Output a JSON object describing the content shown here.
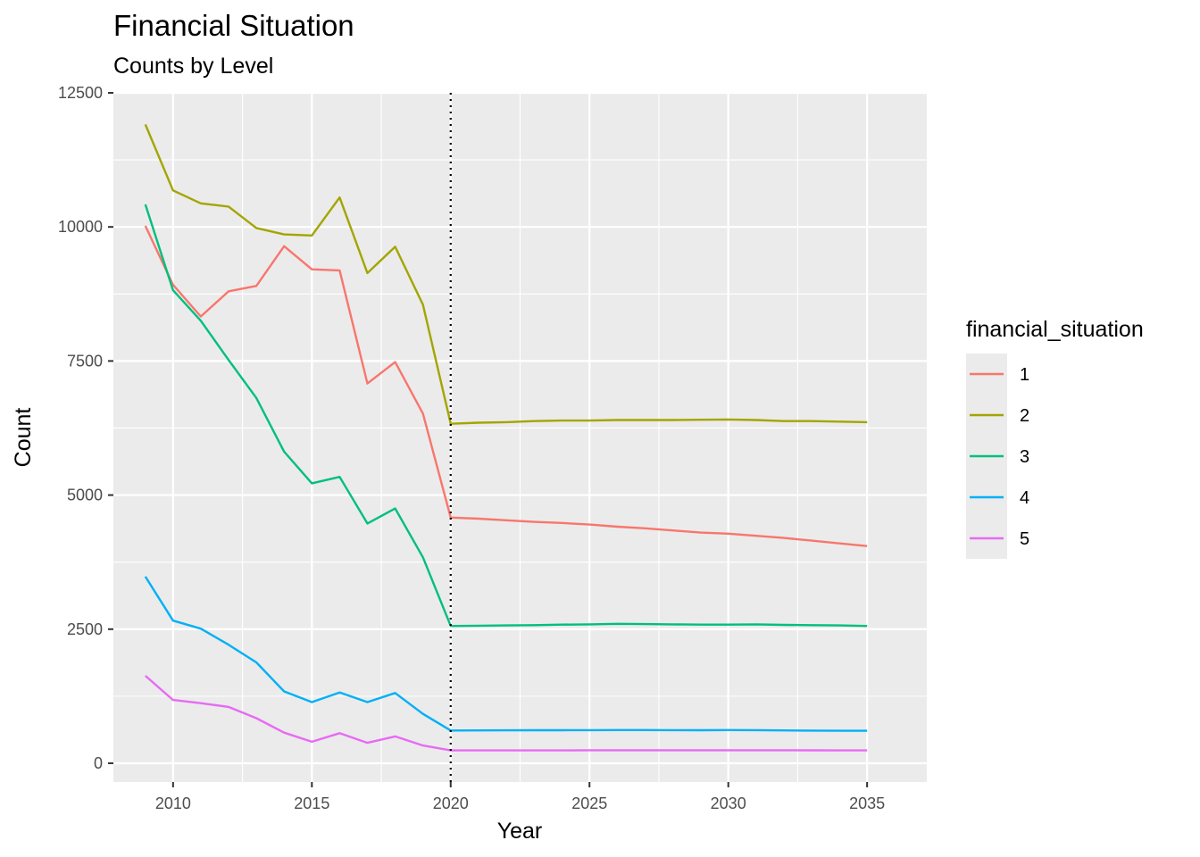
{
  "chart_data": {
    "type": "line",
    "title": "Financial Situation",
    "subtitle": "Counts by Level",
    "xlabel": "Year",
    "ylabel": "Count",
    "xlim": [
      2007.85,
      2037.15
    ],
    "ylim": [
      -350,
      12500
    ],
    "x_ticks": [
      2010,
      2015,
      2020,
      2025,
      2030,
      2035
    ],
    "y_ticks": [
      0,
      2500,
      5000,
      7500,
      10000,
      12500
    ],
    "x_tick_labels": [
      "2010",
      "2015",
      "2020",
      "2025",
      "2030",
      "2035"
    ],
    "y_tick_labels": [
      "0",
      "2500",
      "5000",
      "7500",
      "10000",
      "12500"
    ],
    "grid": true,
    "vline": {
      "x": 2020,
      "style": "dotted",
      "color": "#000000"
    },
    "legend": {
      "title": "financial_situation",
      "position": "right"
    },
    "series": [
      {
        "name": "1",
        "color": "#F8766D",
        "x": [
          2009,
          2010,
          2011,
          2012,
          2013,
          2014,
          2015,
          2016,
          2017,
          2018,
          2019,
          2020,
          2021,
          2022,
          2023,
          2024,
          2025,
          2026,
          2027,
          2028,
          2029,
          2030,
          2031,
          2032,
          2033,
          2034,
          2035
        ],
        "values": [
          10020,
          8920,
          8330,
          8800,
          8900,
          9640,
          9210,
          9190,
          7080,
          7480,
          6520,
          4580,
          4560,
          4530,
          4500,
          4480,
          4450,
          4410,
          4380,
          4340,
          4300,
          4280,
          4240,
          4200,
          4150,
          4100,
          4050
        ]
      },
      {
        "name": "2",
        "color": "#A3A500",
        "x": [
          2009,
          2010,
          2011,
          2012,
          2013,
          2014,
          2015,
          2016,
          2017,
          2018,
          2019,
          2020,
          2021,
          2022,
          2023,
          2024,
          2025,
          2026,
          2027,
          2028,
          2029,
          2030,
          2031,
          2032,
          2033,
          2034,
          2035
        ],
        "values": [
          11910,
          10680,
          10440,
          10380,
          9980,
          9860,
          9840,
          10550,
          9140,
          9630,
          8550,
          6330,
          6350,
          6360,
          6380,
          6390,
          6390,
          6400,
          6400,
          6400,
          6405,
          6410,
          6400,
          6380,
          6380,
          6370,
          6360
        ]
      },
      {
        "name": "3",
        "color": "#00BF7D",
        "x": [
          2009,
          2010,
          2011,
          2012,
          2013,
          2014,
          2015,
          2016,
          2017,
          2018,
          2019,
          2020,
          2021,
          2022,
          2023,
          2024,
          2025,
          2026,
          2027,
          2028,
          2029,
          2030,
          2031,
          2032,
          2033,
          2034,
          2035
        ],
        "values": [
          10420,
          8820,
          8250,
          7520,
          6810,
          5810,
          5220,
          5340,
          4470,
          4750,
          3840,
          2560,
          2565,
          2570,
          2575,
          2585,
          2590,
          2600,
          2595,
          2590,
          2585,
          2585,
          2590,
          2580,
          2575,
          2570,
          2560
        ]
      },
      {
        "name": "4",
        "color": "#00B0F6",
        "x": [
          2009,
          2010,
          2011,
          2012,
          2013,
          2014,
          2015,
          2016,
          2017,
          2018,
          2019,
          2020,
          2021,
          2022,
          2023,
          2024,
          2025,
          2026,
          2027,
          2028,
          2029,
          2030,
          2031,
          2032,
          2033,
          2034,
          2035
        ],
        "values": [
          3480,
          2660,
          2510,
          2210,
          1880,
          1340,
          1140,
          1320,
          1140,
          1310,
          920,
          610,
          612,
          614,
          615,
          616,
          617,
          618,
          618,
          617,
          616,
          618,
          617,
          612,
          608,
          605,
          605
        ]
      },
      {
        "name": "5",
        "color": "#E76BF3",
        "x": [
          2009,
          2010,
          2011,
          2012,
          2013,
          2014,
          2015,
          2016,
          2017,
          2018,
          2019,
          2020,
          2021,
          2022,
          2023,
          2024,
          2025,
          2026,
          2027,
          2028,
          2029,
          2030,
          2031,
          2032,
          2033,
          2034,
          2035
        ],
        "values": [
          1630,
          1180,
          1120,
          1050,
          840,
          570,
          400,
          560,
          380,
          500,
          330,
          240,
          240,
          240,
          240,
          240,
          242,
          243,
          243,
          242,
          242,
          243,
          243,
          242,
          241,
          240,
          240
        ]
      }
    ]
  }
}
